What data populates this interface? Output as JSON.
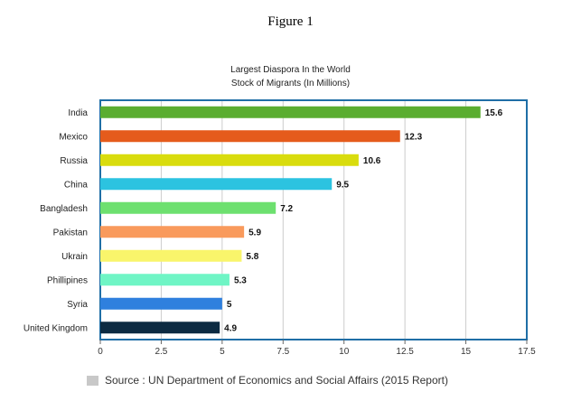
{
  "figure_label": "Figure 1",
  "chart_data": {
    "type": "bar",
    "orientation": "horizontal",
    "title": "Largest Diaspora In the World",
    "subtitle": "Stock of Migrants (In Millions)",
    "categories": [
      "India",
      "Mexico",
      "Russia",
      "China",
      "Bangladesh",
      "Pakistan",
      "Ukrain",
      "Phillipines",
      "Syria",
      "United Kingdom"
    ],
    "values": [
      15.6,
      12.3,
      10.6,
      9.5,
      7.2,
      5.9,
      5.8,
      5.3,
      5,
      4.9
    ],
    "value_labels": [
      "15.6",
      "12.3",
      "10.6",
      "9.5",
      "7.2",
      "5.9",
      "5.8",
      "5.3",
      "5",
      "4.9"
    ],
    "colors": [
      "#5aad30",
      "#e55b1c",
      "#d9dc0d",
      "#2cc3e0",
      "#6de06f",
      "#f99a5c",
      "#f9f56b",
      "#6ff5c5",
      "#2f80de",
      "#0d2b42"
    ],
    "xlim": [
      0,
      17.5
    ],
    "xticks": [
      "0",
      "2.5",
      "5",
      "7.5",
      "10",
      "12.5",
      "15",
      "17.5"
    ],
    "xlabel": "",
    "ylabel": "",
    "grid": true,
    "frame_color": "#1f6ea6",
    "source_swatch_color": "#c8c8c8"
  },
  "source_text": "Source : UN Department of Economics and Social Affairs (2015 Report)"
}
